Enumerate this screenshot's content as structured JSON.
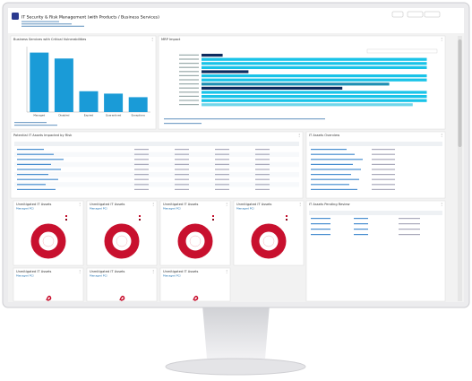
{
  "header": {
    "title": "IT Security & Risk Management (with Products / Business Services)"
  },
  "services": {
    "title": "Business Services with Critical Vulnerabilities",
    "chart": {
      "type": "bar",
      "categories": [
        "Managed",
        "Disabled",
        "Expired",
        "Quarantined",
        "Exceptions"
      ],
      "values": [
        100,
        90,
        35,
        31,
        25
      ],
      "color": "#1a9bd7",
      "ylim": [
        0,
        110
      ]
    }
  },
  "impact": {
    "title": "MRP Impact",
    "chart": {
      "type": "hbar",
      "values": [
        9,
        96,
        96,
        96,
        20,
        96,
        96,
        80,
        60,
        96,
        96,
        96,
        90
      ],
      "colors": [
        "#0d2b5e",
        "#19c3e8",
        "#19c3e8",
        "#19c3e8",
        "#0d2b5e",
        "#19c3e8",
        "#19c3e8",
        "#1f8fb3",
        "#0d2b5e",
        "#19c3e8",
        "#19c3e8",
        "#19c3e8",
        "#6fd6ea"
      ],
      "xlim": [
        0,
        100
      ]
    }
  },
  "potential": {
    "title": "Potential IT Assets Impacted by Risk"
  },
  "overview": {
    "title": "IT Assets Overview"
  },
  "pending": {
    "title": "IT Assets Pending Review"
  },
  "unmitigated": [
    {
      "title": "Unmitigated IT Assets",
      "subtitle": "Managed PCI"
    },
    {
      "title": "Unmitigated IT Assets",
      "subtitle": "Managed PCI"
    },
    {
      "title": "Unmitigated IT Assets",
      "subtitle": "Managed PCI"
    },
    {
      "title": "Unmitigated IT Assets",
      "subtitle": "Managed PCI"
    }
  ],
  "bottom": [
    {
      "title": "Unmitigated IT Assets",
      "subtitle": "Managed PCI"
    },
    {
      "title": "Unmitigated IT Assets",
      "subtitle": "Managed PCI"
    },
    {
      "title": "Unmitigated IT Assets",
      "subtitle": "Managed PCI"
    }
  ]
}
